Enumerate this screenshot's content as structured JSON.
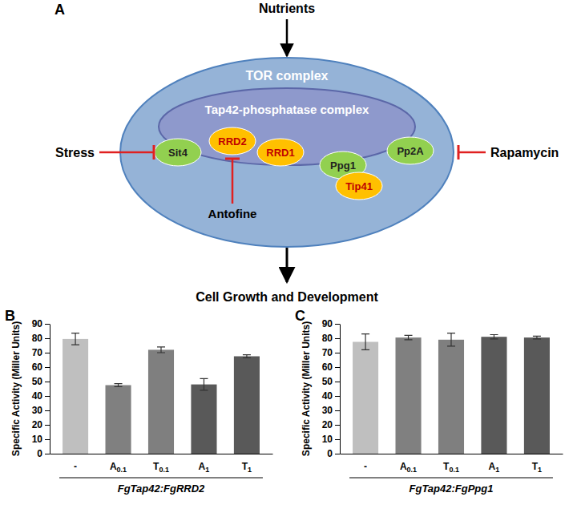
{
  "diagram": {
    "panel_label": "A",
    "input": "Nutrients",
    "complex": "TOR complex",
    "subcomplex": "Tap42-phosphatase complex",
    "output": "Cell Growth and Development",
    "nodes": [
      {
        "label": "Sit4",
        "color": "#92d050"
      },
      {
        "label": "RRD2",
        "color": "#ffc000"
      },
      {
        "label": "RRD1",
        "color": "#ffc000"
      },
      {
        "label": "Ppg1",
        "color": "#92d050"
      },
      {
        "label": "Tip41",
        "color": "#ffc000"
      },
      {
        "label": "Pp2A",
        "color": "#92d050"
      }
    ],
    "inhibitors": [
      {
        "label": "Stress"
      },
      {
        "label": "Antofine"
      },
      {
        "label": "Rapamycin"
      }
    ]
  },
  "chart_data": [
    {
      "type": "bar",
      "panel_label": "B",
      "x_label": "FgTap42:FgRRD2",
      "y_label": "Specific Activity (Miller Units)",
      "categories": [
        "-",
        "A0.1",
        "T0.1",
        "A1",
        "T1"
      ],
      "values": [
        79.5,
        47.5,
        72,
        48,
        67.5
      ],
      "errors": [
        4,
        1,
        2,
        4,
        1
      ],
      "colors": [
        "#bfbfbf",
        "#808080",
        "#7f7f7f",
        "#595959",
        "#595959"
      ],
      "ylim": [
        0,
        90
      ],
      "yticks": [
        0,
        10,
        20,
        30,
        40,
        50,
        60,
        70,
        80,
        90
      ],
      "grid": false
    },
    {
      "type": "bar",
      "panel_label": "C",
      "x_label": "FgTap42:FgPpg1",
      "y_label": "Specific Activity (Miller Units)",
      "categories": [
        "-",
        "A0.1",
        "T0.1",
        "A1",
        "T1"
      ],
      "values": [
        77.5,
        80.5,
        79,
        81,
        80.5
      ],
      "errors": [
        5.5,
        1.5,
        4.5,
        1.5,
        1
      ],
      "colors": [
        "#bfbfbf",
        "#808080",
        "#7f7f7f",
        "#595959",
        "#595959"
      ],
      "ylim": [
        0,
        90
      ],
      "yticks": [
        0,
        10,
        20,
        30,
        40,
        50,
        60,
        70,
        80,
        90
      ],
      "grid": false
    }
  ]
}
